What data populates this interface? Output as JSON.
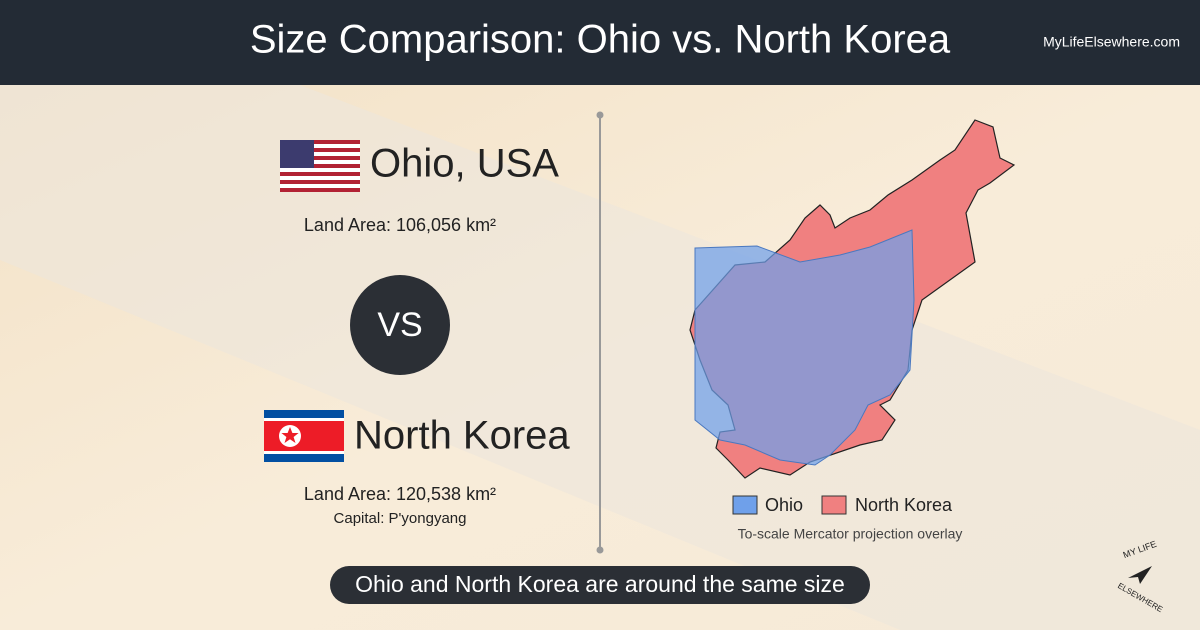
{
  "header": {
    "title": "Size Comparison: Ohio vs. North Korea",
    "site": "MyLifeElsewhere.com"
  },
  "left": {
    "country1": {
      "name": "Ohio, USA",
      "land_area": "Land Area: 106,056 km²"
    },
    "vs": "VS",
    "country2": {
      "name": "North Korea",
      "land_area": "Land Area: 120,538 km²",
      "capital": "Capital: P'yongyang"
    }
  },
  "map": {
    "legend": [
      "Ohio",
      "North Korea"
    ],
    "caption": "To-scale Mercator projection overlay"
  },
  "footer": {
    "summary": "Ohio and North Korea are around the same size"
  },
  "logo": {
    "top": "MY LIFE",
    "bottom": "ELSEWHERE"
  }
}
